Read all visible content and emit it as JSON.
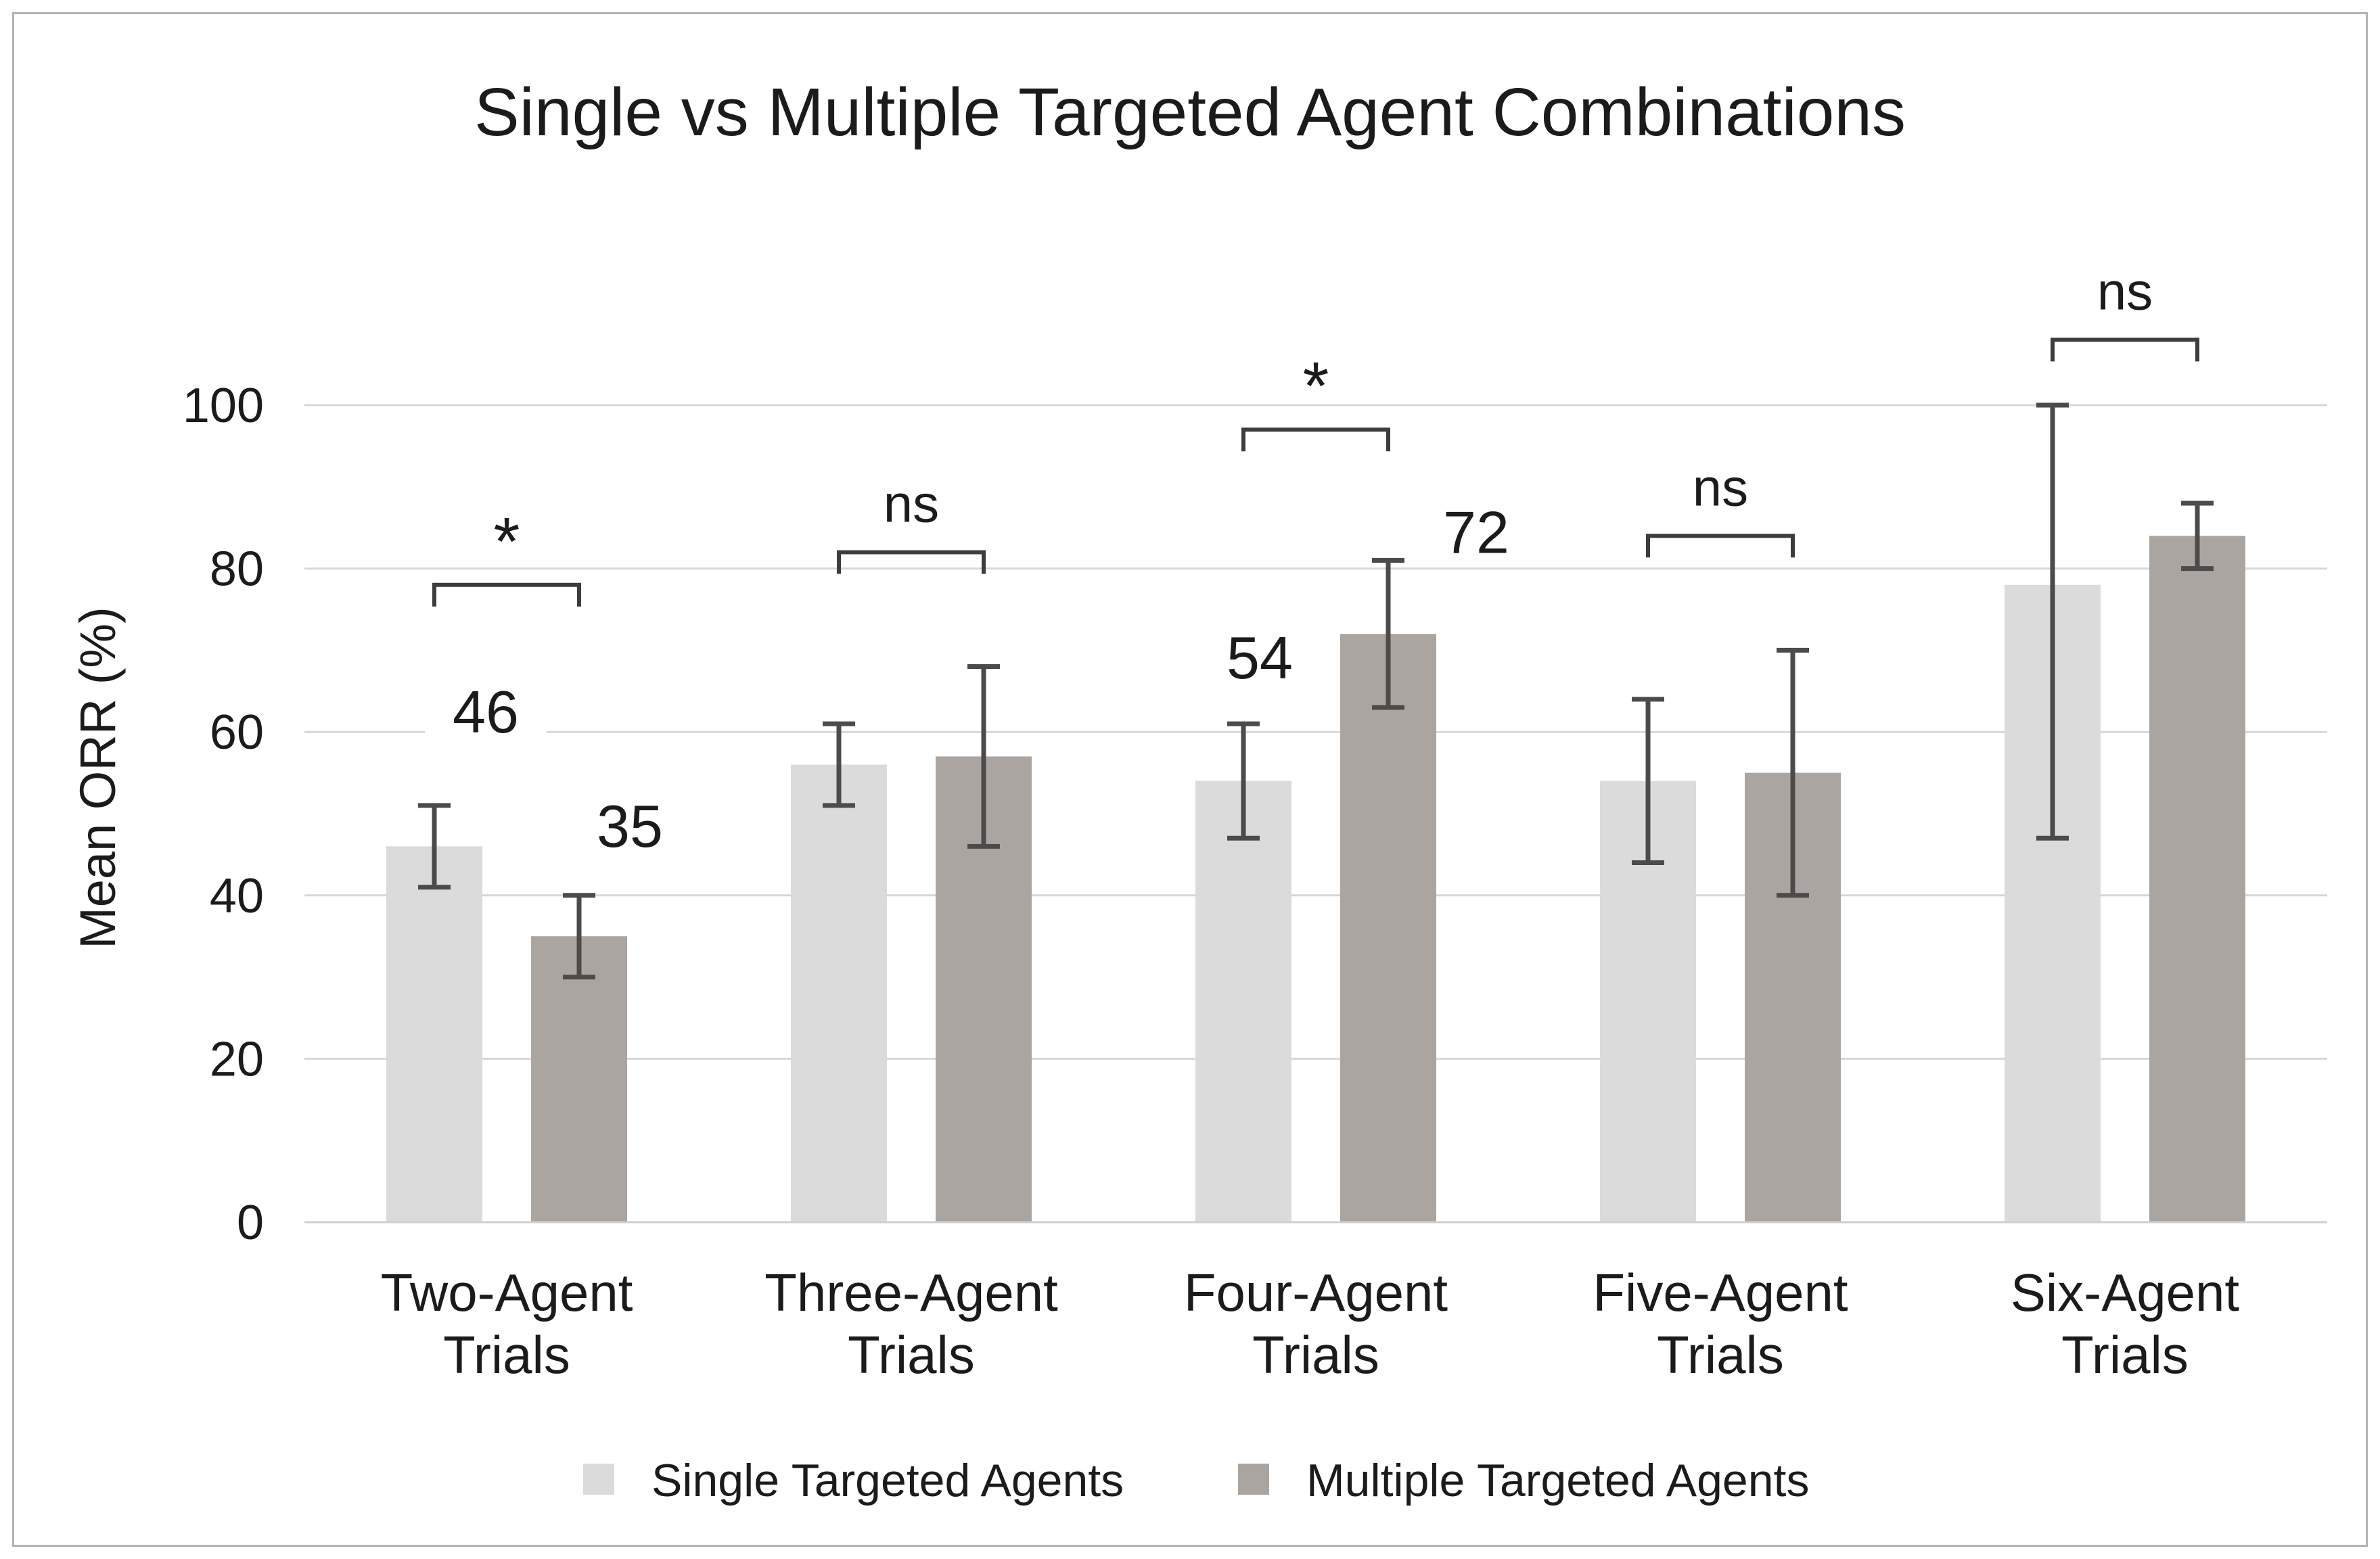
{
  "page": {
    "background": "#ffffff",
    "border_color": "#b2b2b2"
  },
  "chart_data": {
    "type": "bar",
    "title": "Single vs Multiple Targeted Agent Combinations",
    "ylabel": "Mean ORR (%)",
    "xlabel": "",
    "ylim": [
      0,
      100
    ],
    "yticks": [
      0,
      20,
      40,
      60,
      80,
      100
    ],
    "grid": "horizontal",
    "legend_position": "bottom",
    "categories": [
      "Two-Agent Trials",
      "Three-Agent Trials",
      "Four-Agent Trials",
      "Five-Agent Trials",
      "Six-Agent Trials"
    ],
    "category_label_lines": [
      [
        "Two-Agent",
        "Trials"
      ],
      [
        "Three-Agent",
        "Trials"
      ],
      [
        "Four-Agent",
        "Trials"
      ],
      [
        "Five-Agent",
        "Trials"
      ],
      [
        "Six-Agent",
        "Trials"
      ]
    ],
    "series": [
      {
        "name": "Single Targeted Agents",
        "color": "#dbdbdb",
        "values": [
          46,
          56,
          54,
          54,
          78
        ],
        "error_low": [
          41,
          51,
          47,
          44,
          47
        ],
        "error_high": [
          51,
          61,
          61,
          64,
          100
        ],
        "value_labels": [
          "46",
          null,
          "54",
          null,
          null
        ]
      },
      {
        "name": "Multiple Targeted Agents",
        "color": "#aba5a2",
        "values": [
          35,
          57,
          72,
          55,
          84
        ],
        "error_low": [
          30,
          46,
          63,
          40,
          80
        ],
        "error_high": [
          40,
          68,
          81,
          70,
          88
        ],
        "value_labels": [
          "35",
          null,
          "72",
          null,
          null
        ]
      }
    ],
    "significance": [
      {
        "category": "Two-Agent Trials",
        "label": "*",
        "bracket_y": 78
      },
      {
        "category": "Three-Agent Trials",
        "label": "ns",
        "bracket_y": 82
      },
      {
        "category": "Four-Agent Trials",
        "label": "*",
        "bracket_y": 97
      },
      {
        "category": "Five-Agent Trials",
        "label": "ns",
        "bracket_y": 84
      },
      {
        "category": "Six-Agent Trials",
        "label": "ns",
        "bracket_y": 108
      }
    ],
    "colors": {
      "error_bar": "#4d4b4a",
      "bracket": "#3d3d3d",
      "gridline": "#d7d7d7",
      "zero_line": "#cfcfcf",
      "text": "#1b1b1b"
    }
  }
}
